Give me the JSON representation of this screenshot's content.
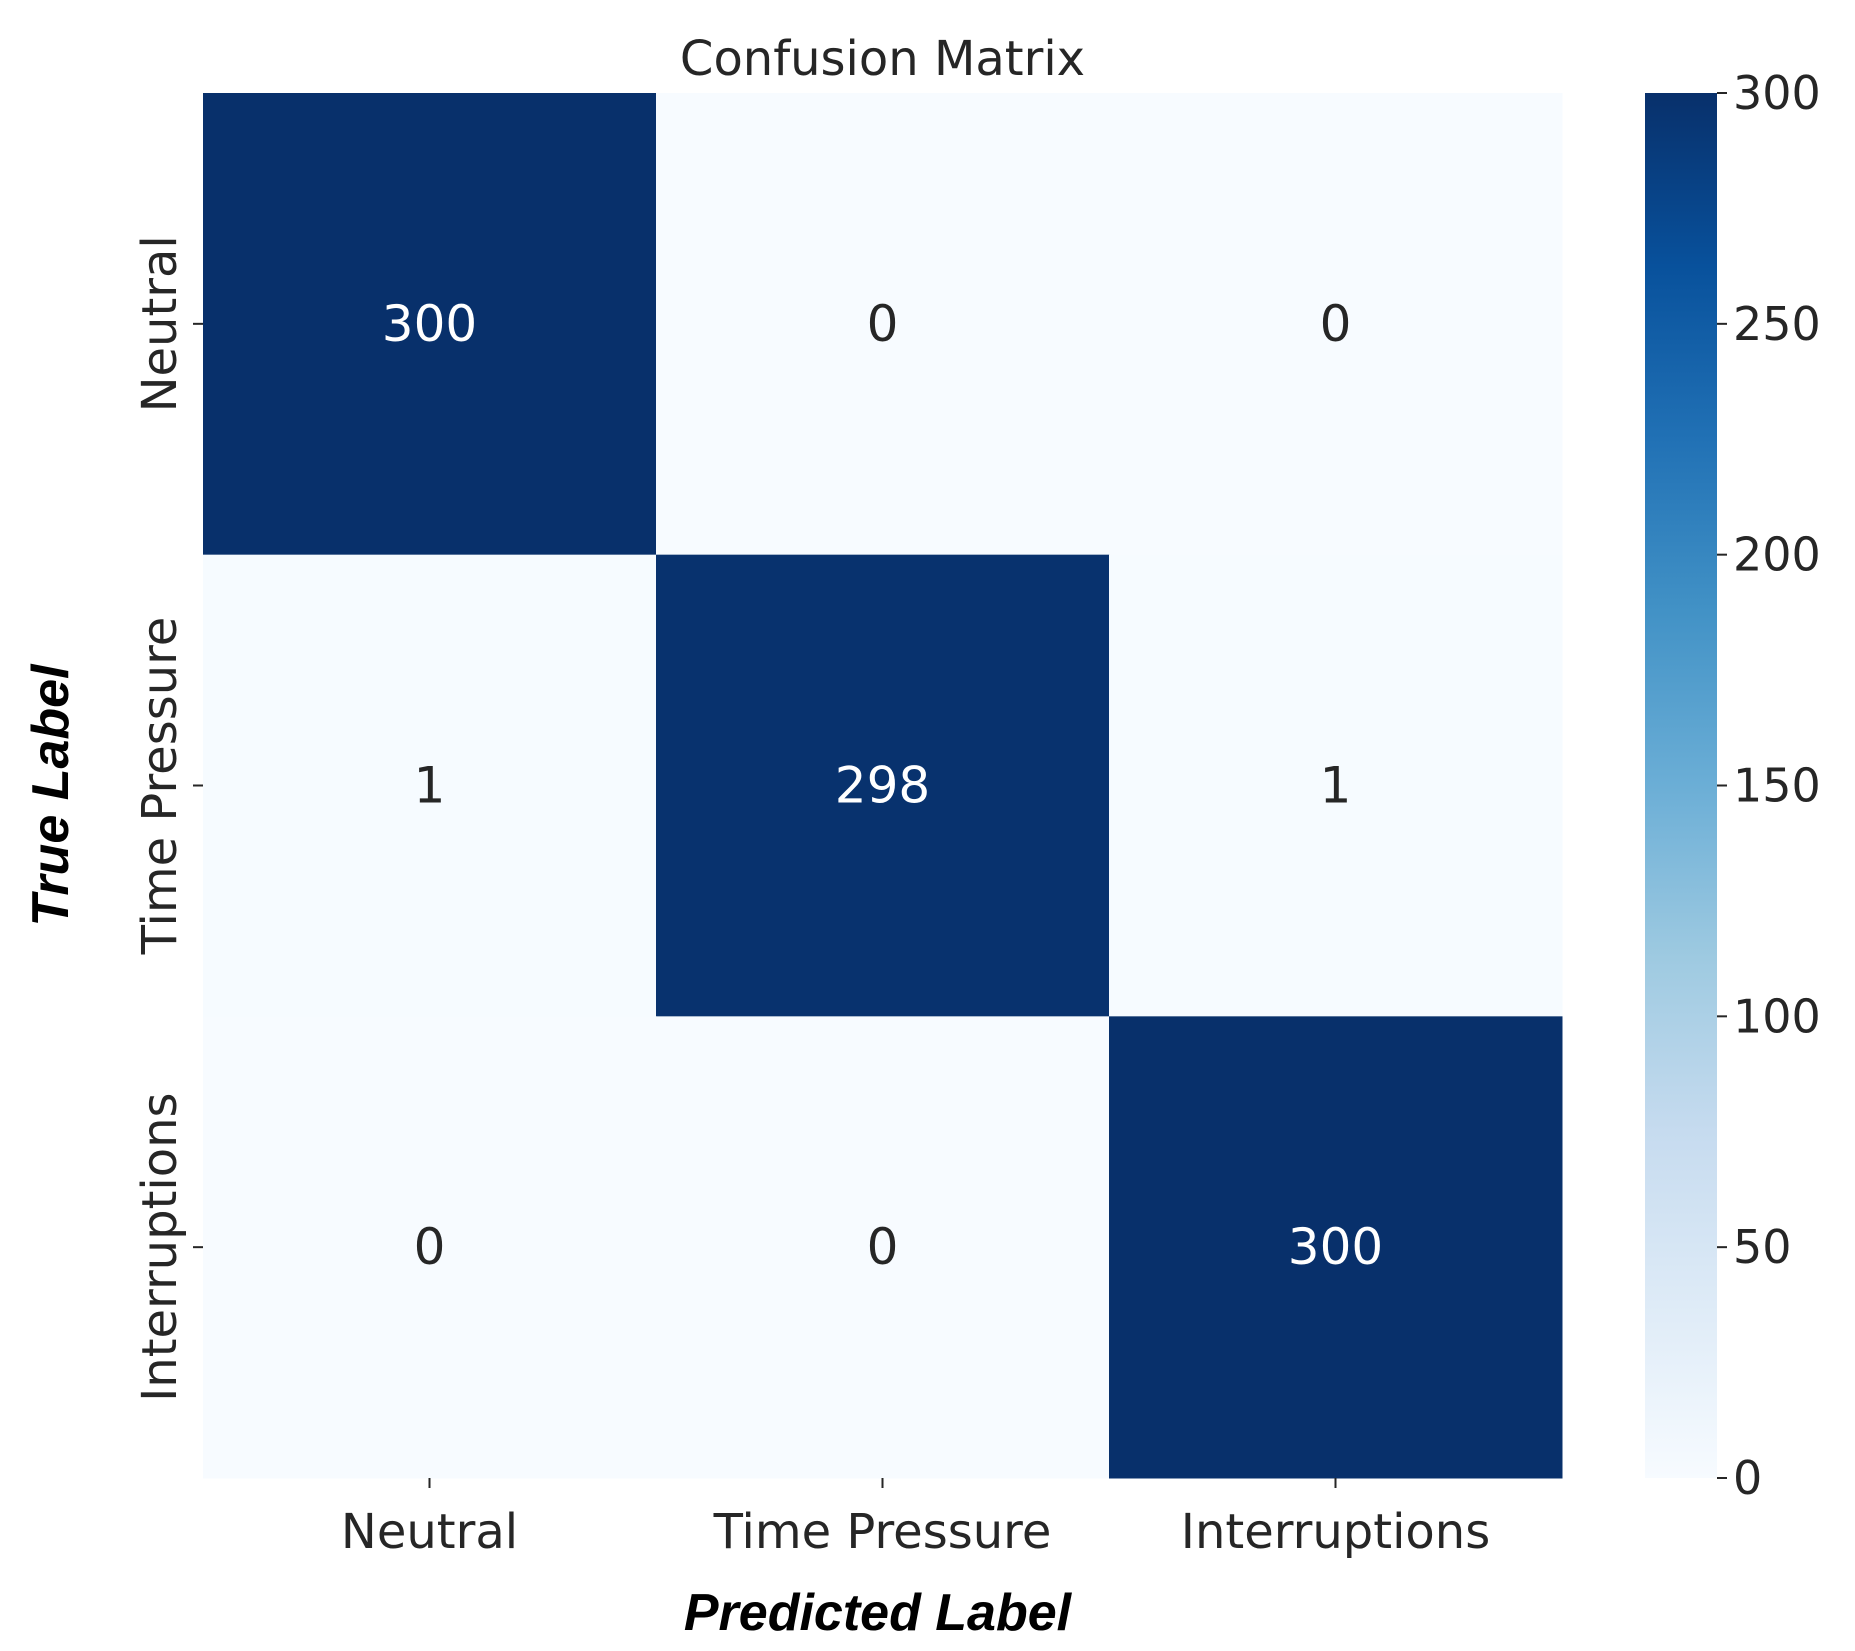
{
  "chart_data": {
    "type": "heatmap",
    "title": "Confusion Matrix",
    "xlabel": "Predicted Label",
    "ylabel": "True Label",
    "x_categories": [
      "Neutral",
      "Time Pressure",
      "Interruptions"
    ],
    "y_categories": [
      "Neutral",
      "Time Pressure",
      "Interruptions"
    ],
    "values": [
      [
        300,
        0,
        0
      ],
      [
        1,
        298,
        1
      ],
      [
        0,
        0,
        300
      ]
    ],
    "colorbar": {
      "min": 0,
      "max": 300,
      "ticks": [
        0,
        50,
        100,
        150,
        200,
        250,
        300
      ]
    },
    "colormap": "Blues",
    "colors": {
      "low": "#f7fbff",
      "high": "#08306b",
      "text_dark": "#262626",
      "text_light": "#ffffff"
    }
  }
}
